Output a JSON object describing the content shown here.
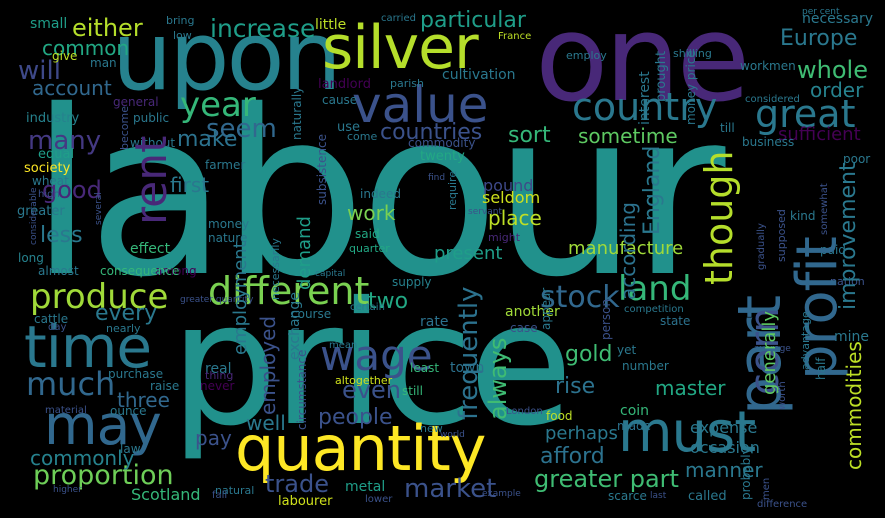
{
  "words": {
    "labour": "labour",
    "price": "price",
    "one": "one",
    "upon": "upon",
    "silver": "silver",
    "value": "value",
    "quantity": "quantity",
    "time": "time",
    "may": "may",
    "must": "must",
    "country": "country",
    "different": "different",
    "produce": "produce",
    "wage": "wage",
    "land": "land",
    "great": "great",
    "year": "year",
    "proportion": "proportion",
    "much": "much",
    "stock": "stock",
    "increase": "increase",
    "either": "either",
    "particular": "particular",
    "europe": "Europe",
    "whole": "whole",
    "order": "order",
    "common": "common",
    "will": "will",
    "account": "account",
    "seem": "seem",
    "countries": "countries",
    "sort": "sort",
    "sometime": "sometime",
    "sufficient": "sufficient",
    "many": "many",
    "make": "make",
    "good": "good",
    "first": "first",
    "work": "work",
    "place": "place",
    "seldom": "seldom",
    "pound": "pound",
    "less": "less",
    "every": "every",
    "two": "two",
    "gold": "gold",
    "rise": "rise",
    "master": "master",
    "even": "even",
    "people": "people",
    "well": "well",
    "pay": "pay",
    "three": "three",
    "commonly": "commonly",
    "perhaps": "perhaps",
    "afford": "afford",
    "market": "market",
    "trade": "trade",
    "greater_part": "greater part",
    "manner": "manner",
    "expense": "expense",
    "occasion": "occasion",
    "demand": "demand",
    "manufacture": "manufacture",
    "present": "present",
    "scotland": "Scotland",
    "labourer": "labourer",
    "metal": "metal",
    "small": "small",
    "called": "called",
    "coin": "coin",
    "food": "food",
    "made": "made",
    "still": "still",
    "town": "town",
    "least": "least",
    "rate": "rate",
    "supply": "supply",
    "another": "another",
    "case": "case",
    "state": "state",
    "real": "real",
    "raise": "raise",
    "purchase": "purchase",
    "never": "never",
    "thing": "thing",
    "altogether": "altogether",
    "number": "number",
    "effect": "effect",
    "money": "money",
    "nature": "nature",
    "among": "among",
    "consequence": "consequence",
    "almost": "almost",
    "long": "long",
    "greater": "greater",
    "society": "society",
    "equal": "equal",
    "industry": "industry",
    "general": "general",
    "public": "public",
    "without": "without",
    "farmer": "farmer",
    "cultivation": "cultivation",
    "landlord": "landlord",
    "cause": "cause",
    "parish": "parish",
    "use": "use",
    "come": "come",
    "commodity": "commodity",
    "twenty": "twenty",
    "indeed": "indeed",
    "said": "said",
    "quarter": "quarter",
    "might": "might",
    "business": "business",
    "till": "till",
    "considered": "considered",
    "workmen": "workmen",
    "poor": "poor",
    "kind": "kind",
    "paid": "paid",
    "nation": "nation",
    "mine": "mine",
    "yet": "yet",
    "necessary": "necessary",
    "little": "little",
    "bring": "bring",
    "low": "low",
    "man": "man",
    "give": "give",
    "law": "law",
    "wheat": "wheat",
    "cattle": "cattle",
    "nearly": "nearly",
    "course": "course",
    "london": "London",
    "new": "new",
    "scarce": "scarce",
    "france": "France",
    "employ": "employ",
    "carried": "carried",
    "per_cent": "per cent",
    "shilling": "shilling",
    "natural": "natural",
    "lower": "lower",
    "difference": "difference",
    "fall": "fall",
    "ounce": "ounce",
    "material": "material",
    "mean": "mean",
    "certain": "certain",
    "capital": "capital",
    "competition": "competition",
    "average": "average",
    "example": "example",
    "world": "world",
    "last": "last",
    "servant": "servant",
    "find": "find",
    "day": "day",
    "high": "high",
    "higher": "higher",
    "greater_quantity": "greater quantity",
    "part": "part",
    "profit": "profit",
    "corn": "corn",
    "rent": "rent",
    "though": "though",
    "frequently": "frequently",
    "always": "always",
    "england": "England",
    "according": "according",
    "improvement": "improvement",
    "commodities": "commodities",
    "generally": "generally",
    "employment": "employment",
    "employed": "employed",
    "exchange": "exchange",
    "circumstance": "circumstance",
    "necessarily": "necessarily",
    "subsistence": "subsistence",
    "interest": "interest",
    "brought": "brought",
    "money_price": "money price",
    "naturally": "naturally",
    "become": "become",
    "probably": "probably",
    "advantage": "advantage",
    "half": "half",
    "supposed": "supposed",
    "gradually": "gradually",
    "somewhat": "somewhat",
    "worth": "worth",
    "men": "men",
    "person": "person",
    "appear": "appear",
    "considerable": "considerable",
    "several": "several",
    "require": "require"
  },
  "colors": {
    "background": "#000000",
    "teal": "#21918c",
    "green": "#35b779",
    "lime": "#90d743",
    "yellow": "#fde725",
    "purple": "#440154",
    "indigo": "#3b528b",
    "blue": "#31688e",
    "navy": "#482878"
  }
}
